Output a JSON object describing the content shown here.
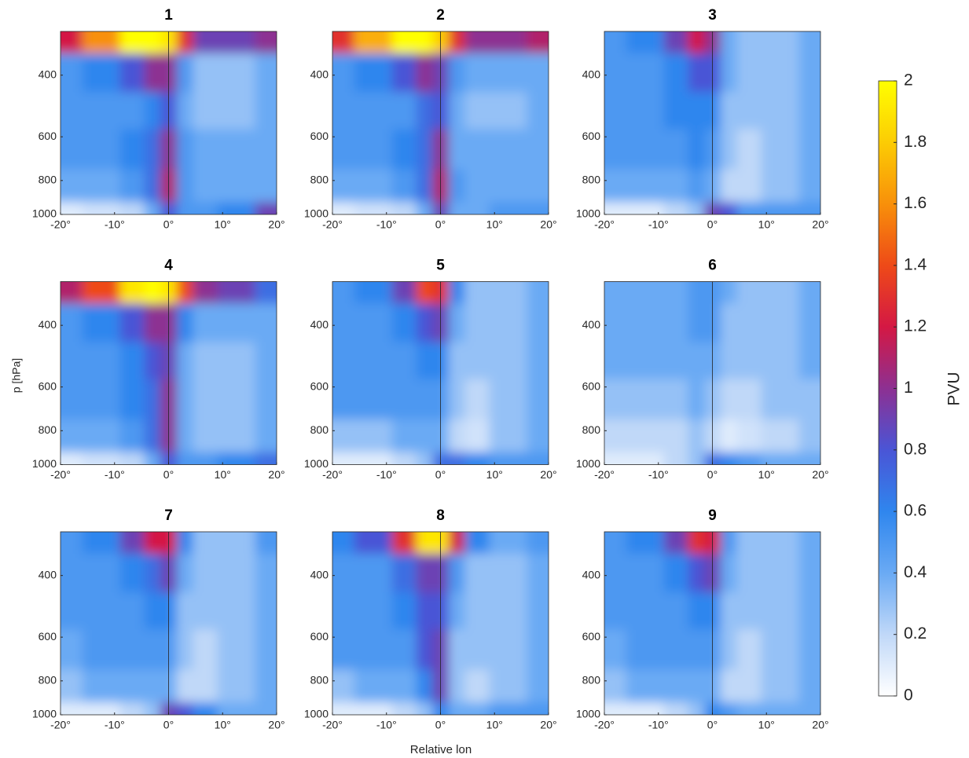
{
  "chart_data": {
    "type": "contour-grid",
    "x_label": "Relative lon",
    "y_label": "p [hPa]",
    "log_y": true,
    "x": [
      -20,
      -12,
      -6,
      -3,
      0,
      3,
      6,
      12,
      20
    ],
    "y": [
      300,
      400,
      500,
      650,
      850,
      1000
    ],
    "xlim": [
      -20,
      20
    ],
    "ylim": [
      1000,
      300
    ],
    "xticks": [
      {
        "value": -20,
        "label": "-20°"
      },
      {
        "value": -10,
        "label": "-10°"
      },
      {
        "value": 0,
        "label": "0°"
      },
      {
        "value": 10,
        "label": "10°"
      },
      {
        "value": 20,
        "label": "20°"
      }
    ],
    "yticks": [
      400,
      600,
      800,
      1000
    ],
    "panels": [
      {
        "title": "1",
        "z": [
          [
            1.2,
            1.6,
            2.0,
            2.0,
            1.9,
            1.3,
            0.9,
            0.9,
            1.0
          ],
          [
            0.5,
            0.6,
            0.8,
            1.0,
            1.0,
            0.5,
            0.3,
            0.3,
            0.4
          ],
          [
            0.5,
            0.5,
            0.5,
            0.6,
            0.8,
            0.4,
            0.3,
            0.3,
            0.4
          ],
          [
            0.5,
            0.5,
            0.6,
            0.7,
            1.0,
            0.5,
            0.4,
            0.4,
            0.4
          ],
          [
            0.4,
            0.4,
            0.5,
            0.7,
            1.1,
            0.5,
            0.4,
            0.4,
            0.4
          ],
          [
            0.1,
            0.15,
            0.2,
            0.4,
            0.8,
            0.5,
            0.5,
            0.6,
            0.9
          ]
        ]
      },
      {
        "title": "2",
        "z": [
          [
            1.3,
            1.7,
            2.0,
            2.0,
            1.8,
            1.3,
            1.0,
            1.0,
            1.1
          ],
          [
            0.5,
            0.6,
            0.8,
            1.0,
            0.9,
            0.5,
            0.4,
            0.4,
            0.4
          ],
          [
            0.5,
            0.5,
            0.5,
            0.7,
            0.8,
            0.4,
            0.3,
            0.3,
            0.4
          ],
          [
            0.5,
            0.5,
            0.6,
            0.7,
            1.0,
            0.4,
            0.4,
            0.4,
            0.4
          ],
          [
            0.4,
            0.4,
            0.5,
            0.7,
            1.1,
            0.5,
            0.4,
            0.4,
            0.4
          ],
          [
            0.1,
            0.15,
            0.2,
            0.4,
            0.9,
            0.4,
            0.4,
            0.5,
            0.5
          ]
        ]
      },
      {
        "title": "3",
        "z": [
          [
            0.5,
            0.6,
            0.9,
            1.2,
            1.0,
            0.4,
            0.3,
            0.3,
            0.4
          ],
          [
            0.5,
            0.5,
            0.6,
            0.8,
            0.8,
            0.4,
            0.3,
            0.3,
            0.4
          ],
          [
            0.5,
            0.5,
            0.6,
            0.6,
            0.6,
            0.3,
            0.3,
            0.3,
            0.4
          ],
          [
            0.5,
            0.5,
            0.5,
            0.6,
            0.5,
            0.3,
            0.2,
            0.3,
            0.4
          ],
          [
            0.4,
            0.4,
            0.4,
            0.5,
            0.4,
            0.2,
            0.2,
            0.3,
            0.4
          ],
          [
            0.1,
            0.1,
            0.2,
            0.3,
            0.9,
            0.8,
            0.5,
            0.5,
            0.5
          ]
        ]
      },
      {
        "title": "4",
        "z": [
          [
            1.1,
            1.4,
            1.9,
            2.0,
            1.9,
            1.4,
            1.0,
            0.9,
            0.7
          ],
          [
            0.5,
            0.6,
            0.8,
            1.0,
            1.0,
            0.6,
            0.4,
            0.4,
            0.4
          ],
          [
            0.5,
            0.5,
            0.6,
            0.8,
            0.9,
            0.4,
            0.3,
            0.3,
            0.4
          ],
          [
            0.5,
            0.5,
            0.6,
            0.7,
            1.0,
            0.4,
            0.3,
            0.3,
            0.4
          ],
          [
            0.4,
            0.4,
            0.5,
            0.7,
            1.0,
            0.4,
            0.3,
            0.3,
            0.4
          ],
          [
            0.1,
            0.15,
            0.2,
            0.4,
            0.8,
            0.5,
            0.5,
            0.6,
            0.7
          ]
        ]
      },
      {
        "title": "5",
        "z": [
          [
            0.5,
            0.6,
            0.9,
            1.4,
            1.3,
            0.6,
            0.3,
            0.3,
            0.4
          ],
          [
            0.5,
            0.5,
            0.6,
            0.8,
            0.9,
            0.4,
            0.3,
            0.3,
            0.4
          ],
          [
            0.5,
            0.5,
            0.5,
            0.6,
            0.6,
            0.3,
            0.3,
            0.3,
            0.4
          ],
          [
            0.5,
            0.5,
            0.5,
            0.5,
            0.5,
            0.3,
            0.2,
            0.3,
            0.4
          ],
          [
            0.3,
            0.3,
            0.4,
            0.4,
            0.4,
            0.2,
            0.15,
            0.3,
            0.4
          ],
          [
            0.1,
            0.1,
            0.2,
            0.3,
            0.7,
            0.7,
            0.6,
            0.5,
            0.5
          ]
        ]
      },
      {
        "title": "6",
        "z": [
          [
            0.4,
            0.4,
            0.4,
            0.5,
            0.5,
            0.4,
            0.3,
            0.3,
            0.4
          ],
          [
            0.4,
            0.4,
            0.4,
            0.5,
            0.5,
            0.3,
            0.3,
            0.3,
            0.4
          ],
          [
            0.4,
            0.4,
            0.4,
            0.4,
            0.4,
            0.3,
            0.3,
            0.3,
            0.4
          ],
          [
            0.3,
            0.3,
            0.3,
            0.4,
            0.3,
            0.2,
            0.2,
            0.3,
            0.3
          ],
          [
            0.2,
            0.2,
            0.2,
            0.3,
            0.2,
            0.1,
            0.15,
            0.2,
            0.3
          ],
          [
            0.1,
            0.1,
            0.2,
            0.3,
            0.7,
            0.6,
            0.5,
            0.4,
            0.4
          ]
        ]
      },
      {
        "title": "7",
        "z": [
          [
            0.5,
            0.6,
            0.9,
            1.2,
            1.2,
            0.6,
            0.3,
            0.3,
            0.5
          ],
          [
            0.5,
            0.5,
            0.6,
            0.7,
            0.9,
            0.4,
            0.3,
            0.3,
            0.4
          ],
          [
            0.5,
            0.5,
            0.5,
            0.6,
            0.6,
            0.3,
            0.3,
            0.3,
            0.4
          ],
          [
            0.4,
            0.5,
            0.5,
            0.5,
            0.5,
            0.3,
            0.2,
            0.3,
            0.4
          ],
          [
            0.3,
            0.4,
            0.4,
            0.4,
            0.4,
            0.2,
            0.2,
            0.3,
            0.4
          ],
          [
            0.1,
            0.1,
            0.2,
            0.3,
            0.9,
            0.8,
            0.6,
            0.4,
            0.4
          ]
        ]
      },
      {
        "title": "8",
        "z": [
          [
            0.6,
            0.8,
            1.3,
            1.9,
            1.9,
            1.2,
            0.6,
            0.4,
            0.5
          ],
          [
            0.5,
            0.5,
            0.7,
            0.9,
            0.9,
            0.5,
            0.3,
            0.3,
            0.4
          ],
          [
            0.5,
            0.5,
            0.6,
            0.8,
            0.8,
            0.4,
            0.3,
            0.3,
            0.4
          ],
          [
            0.5,
            0.5,
            0.5,
            0.8,
            0.9,
            0.3,
            0.3,
            0.3,
            0.4
          ],
          [
            0.3,
            0.4,
            0.4,
            0.6,
            0.9,
            0.3,
            0.2,
            0.3,
            0.4
          ],
          [
            0.1,
            0.1,
            0.2,
            0.3,
            0.6,
            0.4,
            0.4,
            0.5,
            0.5
          ]
        ]
      },
      {
        "title": "9",
        "z": [
          [
            0.5,
            0.6,
            0.9,
            1.3,
            1.2,
            0.5,
            0.3,
            0.3,
            0.4
          ],
          [
            0.5,
            0.5,
            0.6,
            0.8,
            0.9,
            0.4,
            0.3,
            0.3,
            0.4
          ],
          [
            0.5,
            0.5,
            0.5,
            0.6,
            0.6,
            0.3,
            0.3,
            0.3,
            0.4
          ],
          [
            0.4,
            0.5,
            0.5,
            0.5,
            0.5,
            0.3,
            0.2,
            0.3,
            0.4
          ],
          [
            0.3,
            0.4,
            0.4,
            0.4,
            0.4,
            0.2,
            0.2,
            0.3,
            0.4
          ],
          [
            0.1,
            0.1,
            0.2,
            0.3,
            0.6,
            0.5,
            0.4,
            0.4,
            0.4
          ]
        ]
      }
    ],
    "colorbar": {
      "label": "PVU",
      "clim": [
        0,
        2
      ],
      "ticks": [
        0,
        0.2,
        0.4,
        0.6,
        0.8,
        1,
        1.2,
        1.4,
        1.6,
        1.8,
        2
      ],
      "colors": [
        "#ffffff",
        "#c0d8f8",
        "#6aaaf4",
        "#2f86ee",
        "#4a55d6",
        "#8d3092",
        "#d41844",
        "#ee4a18",
        "#f8900a",
        "#fccc04",
        "#ffff00"
      ]
    }
  }
}
